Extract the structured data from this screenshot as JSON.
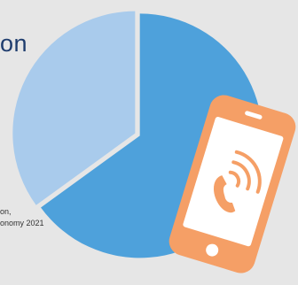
{
  "chart_data": {
    "type": "pie",
    "title_fragment": "on",
    "slices": [
      {
        "value": 0.65,
        "color": "#4ea1db"
      },
      {
        "value": 0.35,
        "color": "#a9cbec"
      }
    ],
    "source_lines": [
      "on,",
      "onomy 2021"
    ]
  },
  "icons": {
    "phone": "mobile-phone-call-icon"
  },
  "colors": {
    "background": "#e6e6e6",
    "title": "#1f3d6e",
    "phone_fill": "#f59f66",
    "phone_screen": "#ffffff"
  }
}
